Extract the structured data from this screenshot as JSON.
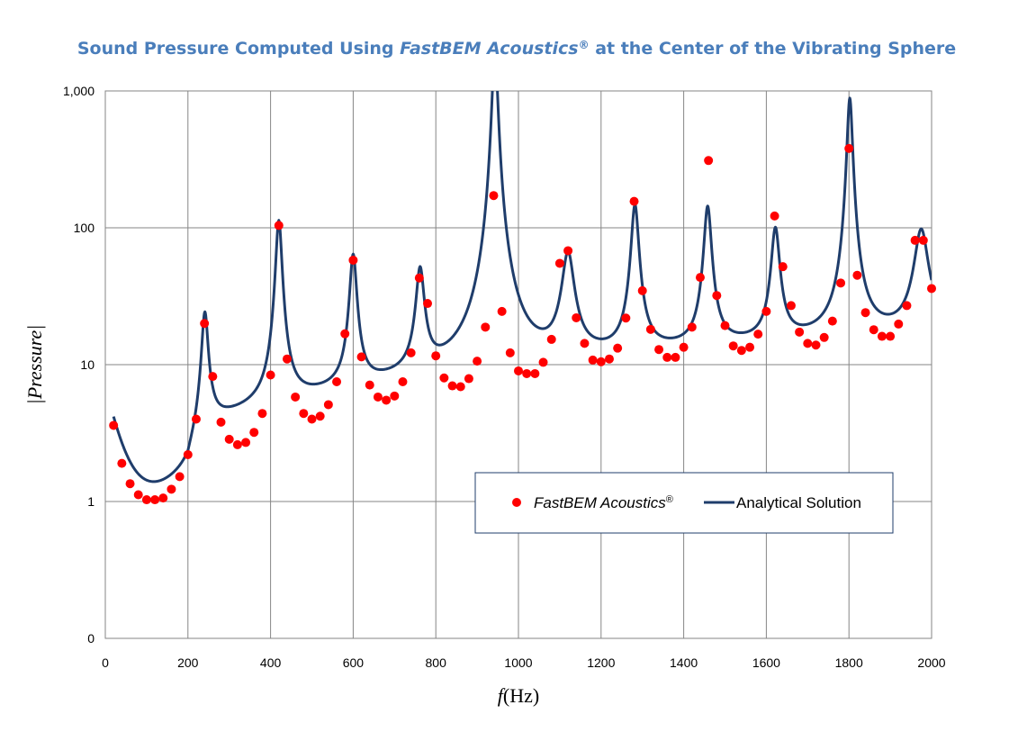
{
  "chart_data": {
    "type": "line",
    "title": {
      "prefix": "Sound Pressure Computed Using ",
      "italic": "FastBEM Acoustics",
      "sup": "®",
      "suffix": " at the Center of the Vibrating Sphere"
    },
    "xlabel": {
      "italic": "f",
      "rest": "(Hz)"
    },
    "ylabel": "|Pressure|",
    "xlim": [
      0,
      2000
    ],
    "ylim_log10": [
      -1,
      3
    ],
    "y_scale": "log",
    "grid": true,
    "legend_position": "bottom-right",
    "x_ticks": [
      {
        "value": 0,
        "label": "0"
      },
      {
        "value": 200,
        "label": "200"
      },
      {
        "value": 400,
        "label": "400"
      },
      {
        "value": 600,
        "label": "600"
      },
      {
        "value": 800,
        "label": "800"
      },
      {
        "value": 1000,
        "label": "1000"
      },
      {
        "value": 1200,
        "label": "1200"
      },
      {
        "value": 1400,
        "label": "1400"
      },
      {
        "value": 1600,
        "label": "1600"
      },
      {
        "value": 1800,
        "label": "1800"
      },
      {
        "value": 2000,
        "label": "2000"
      }
    ],
    "y_ticks": [
      {
        "value": 0.1,
        "label": "0"
      },
      {
        "value": 1,
        "label": "1"
      },
      {
        "value": 10,
        "label": "10"
      },
      {
        "value": 100,
        "label": "100"
      },
      {
        "value": 1000,
        "label": "1,000"
      }
    ],
    "series": [
      {
        "name": "FastBEM Acoustics",
        "name_sup": "®",
        "kind": "scatter",
        "color": "#ff0000",
        "x": [
          20,
          40,
          60,
          80,
          100,
          120,
          140,
          160,
          180,
          200,
          220,
          240,
          260,
          280,
          300,
          320,
          340,
          360,
          380,
          400,
          420,
          440,
          460,
          480,
          500,
          520,
          540,
          560,
          580,
          600,
          620,
          640,
          660,
          680,
          700,
          720,
          740,
          760,
          780,
          800,
          820,
          840,
          860,
          880,
          900,
          920,
          940,
          960,
          980,
          1000,
          1020,
          1040,
          1060,
          1080,
          1100,
          1120,
          1140,
          1160,
          1180,
          1200,
          1220,
          1240,
          1260,
          1280,
          1300,
          1320,
          1340,
          1360,
          1380,
          1400,
          1420,
          1440,
          1460,
          1480,
          1500,
          1520,
          1540,
          1560,
          1580,
          1600,
          1620,
          1640,
          1660,
          1680,
          1700,
          1720,
          1740,
          1760,
          1780,
          1800,
          1820,
          1840,
          1860,
          1880,
          1900,
          1920,
          1940,
          1960,
          1980,
          2000
        ],
        "y": [
          3.6,
          1.9,
          1.35,
          1.12,
          1.03,
          1.03,
          1.06,
          1.23,
          1.52,
          2.2,
          4.0,
          20,
          8.2,
          3.8,
          2.85,
          2.6,
          2.7,
          3.2,
          4.4,
          8.4,
          104,
          11,
          5.8,
          4.4,
          4.0,
          4.2,
          5.1,
          7.5,
          16.8,
          58,
          11.4,
          7.1,
          5.8,
          5.5,
          5.9,
          7.5,
          12.2,
          43,
          28,
          11.6,
          8.0,
          7.0,
          6.9,
          7.9,
          10.6,
          18.8,
          172,
          24.5,
          12.2,
          9.0,
          8.6,
          8.6,
          10.4,
          15.3,
          55,
          68,
          22,
          14.3,
          10.8,
          10.5,
          11.0,
          13.2,
          21.9,
          156,
          34.7,
          18.1,
          12.9,
          11.3,
          11.3,
          13.4,
          18.8,
          43.4,
          310,
          32,
          19.3,
          13.7,
          12.7,
          13.4,
          16.7,
          24.5,
          122,
          52,
          27,
          17.3,
          14.3,
          13.9,
          15.8,
          20.8,
          39.5,
          380,
          45,
          24,
          18,
          16.1,
          16.1,
          19.8,
          27,
          81,
          81,
          36
        ]
      },
      {
        "name": "Analytical Solution",
        "kind": "line",
        "color": "#1f3d6b",
        "peaks": [
          {
            "f": 241,
            "amp": 21,
            "width": 7.5
          },
          {
            "f": 420,
            "amp": 108,
            "width": 7
          },
          {
            "f": 600,
            "amp": 57,
            "width": 8
          },
          {
            "f": 762,
            "amp": 42,
            "width": 9.5
          },
          {
            "f": 943,
            "amp": 2000,
            "width": 6
          },
          {
            "f": 1120,
            "amp": 54,
            "width": 14
          },
          {
            "f": 1282,
            "amp": 135,
            "width": 8.5
          },
          {
            "f": 1458,
            "amp": 130,
            "width": 8.5
          },
          {
            "f": 1622,
            "amp": 85,
            "width": 9.5
          },
          {
            "f": 1802,
            "amp": 870,
            "width": 6
          },
          {
            "f": 1975,
            "amp": 80,
            "width": 16
          }
        ],
        "background": {
          "low_f_ref": 105,
          "low_min": 1.0,
          "low_mult": 5.5,
          "low_decay": 28,
          "linear_intercept": 1.6,
          "linear_slope": 0.0078
        }
      }
    ]
  }
}
